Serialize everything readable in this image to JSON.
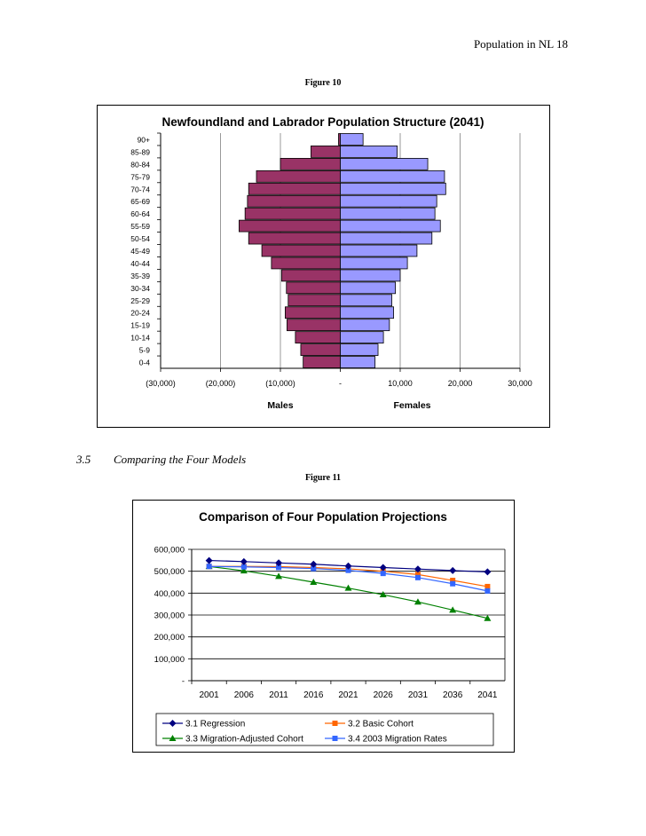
{
  "header": {
    "running_title": "Population in NL   18"
  },
  "figure10": {
    "caption": "Figure 10"
  },
  "section": {
    "number": "3.5",
    "title": "Comparing the Four Models"
  },
  "figure11": {
    "caption": "Figure 11"
  },
  "chart_data": [
    {
      "type": "bar",
      "orientation": "horizontal-population-pyramid",
      "title": "Newfoundland and Labrador Population Structure (2041)",
      "categories": [
        "90+",
        "85-89",
        "80-84",
        "75-79",
        "70-74",
        "65-69",
        "60-64",
        "55-59",
        "50-54",
        "45-49",
        "40-44",
        "35-39",
        "30-34",
        "25-29",
        "20-24",
        "15-19",
        "10-14",
        "5-9",
        "0-4"
      ],
      "series": [
        {
          "name": "Males",
          "color": "#993366",
          "values": [
            -300,
            -4900,
            -10000,
            -14000,
            -15300,
            -15500,
            -15900,
            -16900,
            -15300,
            -13100,
            -11500,
            -9800,
            -9000,
            -8700,
            -9200,
            -8900,
            -7500,
            -6600,
            -6200
          ]
        },
        {
          "name": "Females",
          "color": "#9999ff",
          "values": [
            3800,
            9500,
            14600,
            17400,
            17600,
            16100,
            15800,
            16700,
            15300,
            12800,
            11200,
            10000,
            9200,
            8600,
            8900,
            8200,
            7200,
            6300,
            5800
          ]
        }
      ],
      "xlim": [
        -30000,
        30000
      ],
      "xticks": [
        "(30,000)",
        "(20,000)",
        "(10,000)",
        "-",
        "10,000",
        "20,000",
        "30,000"
      ],
      "xlabels": [
        "Males",
        "Females"
      ],
      "grid": "vertical"
    },
    {
      "type": "line",
      "title": "Comparison of Four Population Projections",
      "x": [
        "2001",
        "2006",
        "2011",
        "2016",
        "2021",
        "2026",
        "2031",
        "2036",
        "2041"
      ],
      "ylim": [
        0,
        600000
      ],
      "yticks": [
        "-",
        "100,000",
        "200,000",
        "300,000",
        "400,000",
        "500,000",
        "600,000"
      ],
      "grid": "horizontal",
      "legend_position": "bottom",
      "series": [
        {
          "name": "3.1 Regression",
          "color": "#000080",
          "marker": "diamond",
          "values": [
            549000,
            544000,
            538000,
            532000,
            524000,
            517000,
            510000,
            503000,
            497000
          ]
        },
        {
          "name": "3.2 Basic Cohort",
          "color": "#ff6600",
          "marker": "square",
          "values": [
            522000,
            522000,
            521000,
            517000,
            511000,
            500000,
            485000,
            458000,
            430000
          ]
        },
        {
          "name": "3.3 Migration-Adjusted Cohort",
          "color": "#008000",
          "marker": "triangle",
          "values": [
            522000,
            502000,
            477000,
            450000,
            423000,
            393000,
            360000,
            323000,
            285000
          ]
        },
        {
          "name": "3.4 2003 Migration Rates",
          "color": "#3366ff",
          "marker": "square",
          "values": [
            522000,
            520000,
            517000,
            512000,
            504000,
            490000,
            471000,
            443000,
            410000
          ]
        }
      ]
    }
  ]
}
